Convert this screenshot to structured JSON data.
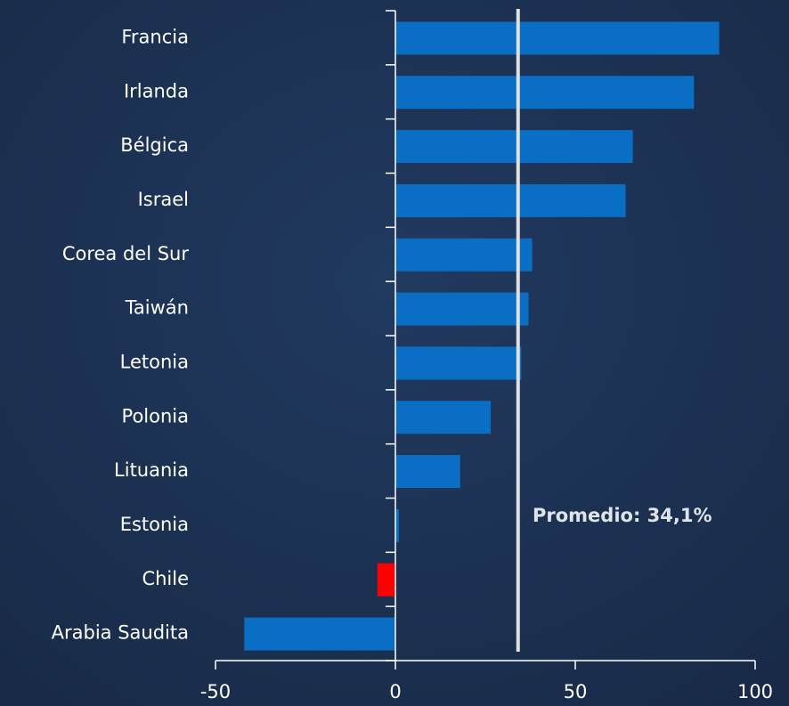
{
  "chart_data": {
    "type": "barh",
    "categories": [
      "Francia",
      "Irlanda",
      "Bélgica",
      "Israel",
      "Corea del Sur",
      "Taiwán",
      "Letonia",
      "Polonia",
      "Lituania",
      "Estonia",
      "Chile",
      "Arabia Saudita"
    ],
    "values": [
      90,
      83,
      66,
      64,
      38,
      37,
      35,
      26.5,
      18,
      1,
      -5,
      -42
    ],
    "colors": [
      "#0a6ec4",
      "#0a6ec4",
      "#0a6ec4",
      "#0a6ec4",
      "#0a6ec4",
      "#0a6ec4",
      "#0a6ec4",
      "#0a6ec4",
      "#0a6ec4",
      "#0a6ec4",
      "#ff0000",
      "#0a6ec4"
    ],
    "xlim": [
      -50,
      100
    ],
    "xticks": [
      -50,
      0,
      50,
      100
    ],
    "average": {
      "value": 34.1,
      "label": "Promedio: 34,1%"
    }
  }
}
